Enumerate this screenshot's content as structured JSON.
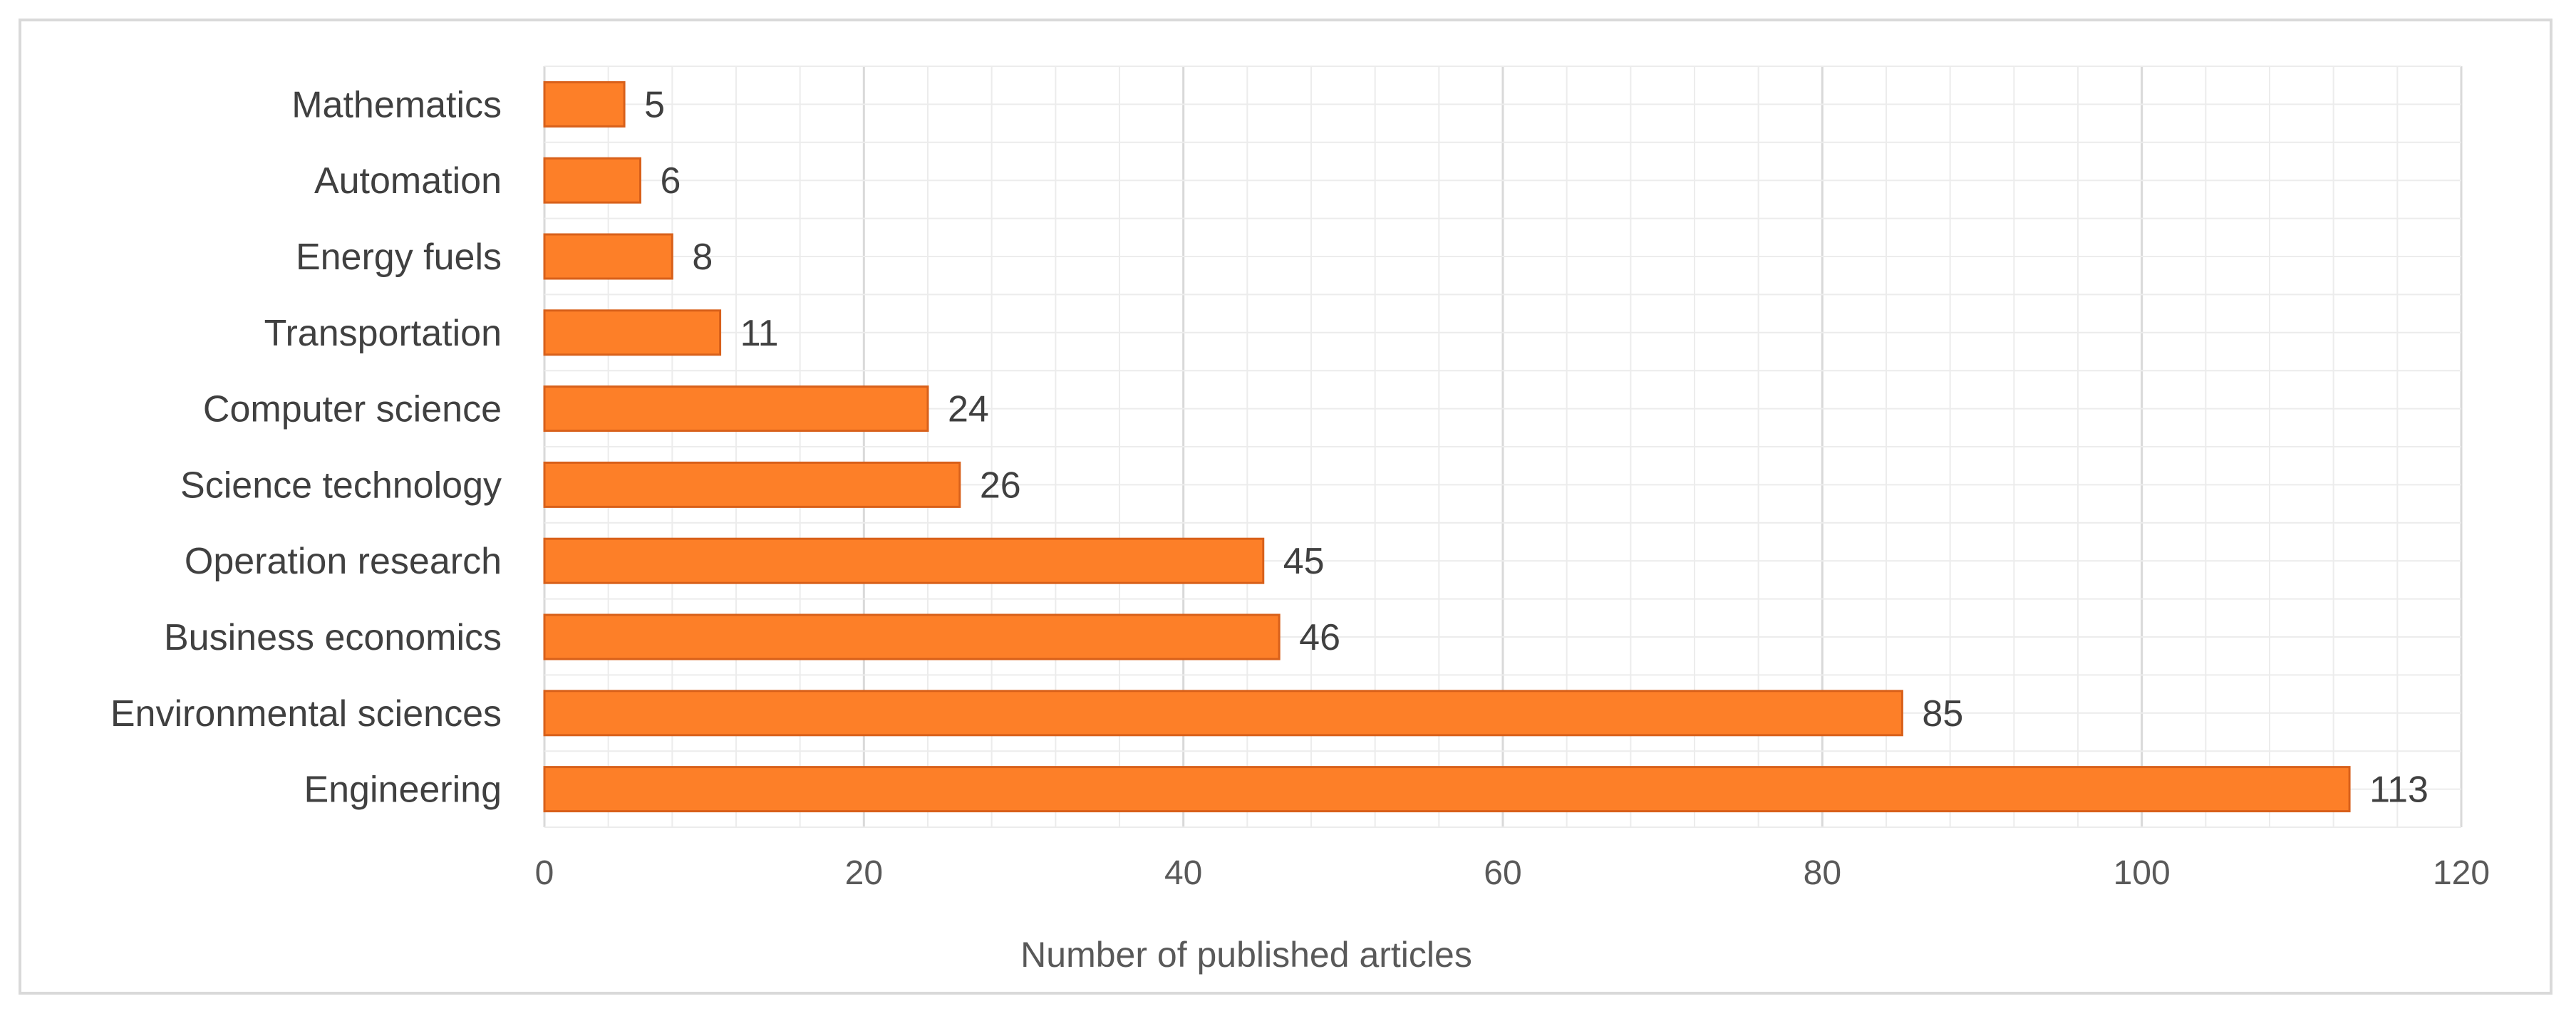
{
  "chart_data": {
    "type": "bar",
    "orientation": "horizontal",
    "categories": [
      "Mathematics",
      "Automation",
      "Energy fuels",
      "Transportation",
      "Computer science",
      "Science technology",
      "Operation research",
      "Business economics",
      "Environmental sciences",
      "Engineering"
    ],
    "values": [
      5,
      6,
      8,
      11,
      24,
      26,
      45,
      46,
      85,
      113
    ],
    "xlabel": "Number of published articles",
    "ylabel": "",
    "xlim": [
      0,
      120
    ],
    "xticks": [
      "0",
      "20",
      "40",
      "60",
      "80",
      "100",
      "120"
    ],
    "grid": true,
    "legend": "none",
    "colors": {
      "bar_fill": "#fd7f28",
      "bar_stroke": "#d8601a",
      "grid_major": "#d9d9d9",
      "grid_minor": "#ececec"
    }
  }
}
